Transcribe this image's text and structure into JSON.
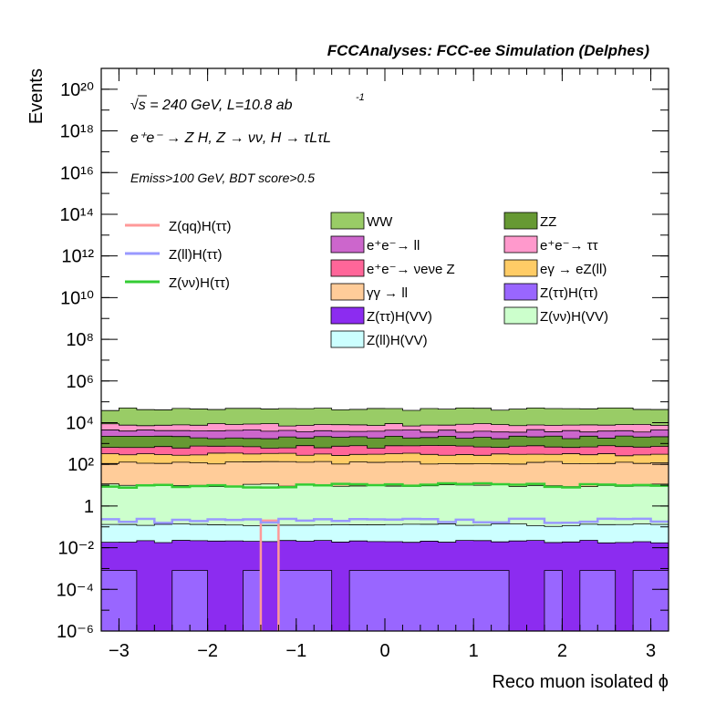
{
  "header": {
    "title": "FCCAnalyses: FCC-ee Simulation (Delphes)"
  },
  "annotations": {
    "energy": "√s = 240 GeV, L=10.8 ab",
    "energy_sup": "-1",
    "process": "e⁺e⁻ → Z H, Z → νν, H → τLτL",
    "cuts": "Emiss>100 GeV, BDT score>0.5"
  },
  "chart_data": {
    "type": "area",
    "xlabel": "Reco muon isolated ϕ",
    "ylabel": "Events",
    "xlim": [
      -3.2,
      3.2
    ],
    "ylim": [
      1e-06,
      1e+21
    ],
    "log_y": true,
    "x_ticks": [
      "−3",
      "−2",
      "−1",
      "0",
      "1",
      "2",
      "3"
    ],
    "y_ticks": [
      "10⁻⁶",
      "10⁻⁴",
      "10⁻²",
      "1",
      "10²",
      "10⁴",
      "10⁶",
      "10⁸",
      "10¹⁰",
      "10¹²",
      "10¹⁴",
      "10¹⁶",
      "10¹⁸",
      "10²⁰"
    ],
    "grid": false,
    "legend_position": "top",
    "bins": 32,
    "stack_cumulative_levels": [
      {
        "name": "Z(ττ)H(ττ)",
        "color": "#9966ff",
        "typical_top": 0.0008
      },
      {
        "name": "Z(ττ)H(VV)",
        "color": "#8c2cf0",
        "typical_top": 0.02
      },
      {
        "name": "Z(ll)H(VV)",
        "color": "#ccffff",
        "typical_top": 0.12
      },
      {
        "name": "Z(νν)H(VV)",
        "color": "#ccffcc",
        "typical_top": 10
      },
      {
        "name": "γγ → ll",
        "color": "#ffcc99",
        "typical_top": 120
      },
      {
        "name": "eγ → eZ(ll)",
        "color": "#ffcc66",
        "typical_top": 300
      },
      {
        "name": "e⁺e⁻→ νeνe Z",
        "color": "#ff6699",
        "typical_top": 700
      },
      {
        "name": "ZZ",
        "color": "#669933",
        "typical_top": 2000
      },
      {
        "name": "e⁺e⁻→ ll",
        "color": "#cc66cc",
        "typical_top": 4000
      },
      {
        "name": "e⁺e⁻→ ττ",
        "color": "#ff99cc",
        "typical_top": 8000
      },
      {
        "name": "WW",
        "color": "#99cc66",
        "typical_top": 45000
      }
    ],
    "signals": [
      {
        "name": "Z(qq)H(ττ)",
        "color": "#ff9999",
        "note": "single bin around ϕ≈-1.35, value ≈0.2"
      },
      {
        "name": "Z(ll)H(ττ)",
        "color": "#9999ff",
        "typical_value": 0.2
      },
      {
        "name": "Z(νν)H(ττ)",
        "color": "#33cc33",
        "typical_value": 10
      }
    ],
    "legend_left": [
      {
        "label": "Z(qq)H(ττ)",
        "color": "#ff9999"
      },
      {
        "label": "Z(ll)H(ττ)",
        "color": "#9999ff"
      },
      {
        "label": "Z(νν)H(ττ)",
        "color": "#33cc33"
      }
    ],
    "legend_col1": [
      {
        "label": "WW",
        "color": "#99cc66"
      },
      {
        "label": "e⁺e⁻→ ll",
        "color": "#cc66cc"
      },
      {
        "label": "e⁺e⁻→ νeνe Z",
        "color": "#ff6699"
      },
      {
        "label": "γγ → ll",
        "color": "#ffcc99"
      },
      {
        "label": "Z(ττ)H(VV)",
        "color": "#8c2cf0"
      },
      {
        "label": "Z(ll)H(VV)",
        "color": "#ccffff"
      }
    ],
    "legend_col2": [
      {
        "label": "ZZ",
        "color": "#669933"
      },
      {
        "label": "e⁺e⁻→ ττ",
        "color": "#ff99cc"
      },
      {
        "label": "eγ → eZ(ll)",
        "color": "#ffcc66"
      },
      {
        "label": "Z(ττ)H(ττ)",
        "color": "#9966ff"
      },
      {
        "label": "Z(νν)H(VV)",
        "color": "#ccffcc"
      }
    ]
  }
}
